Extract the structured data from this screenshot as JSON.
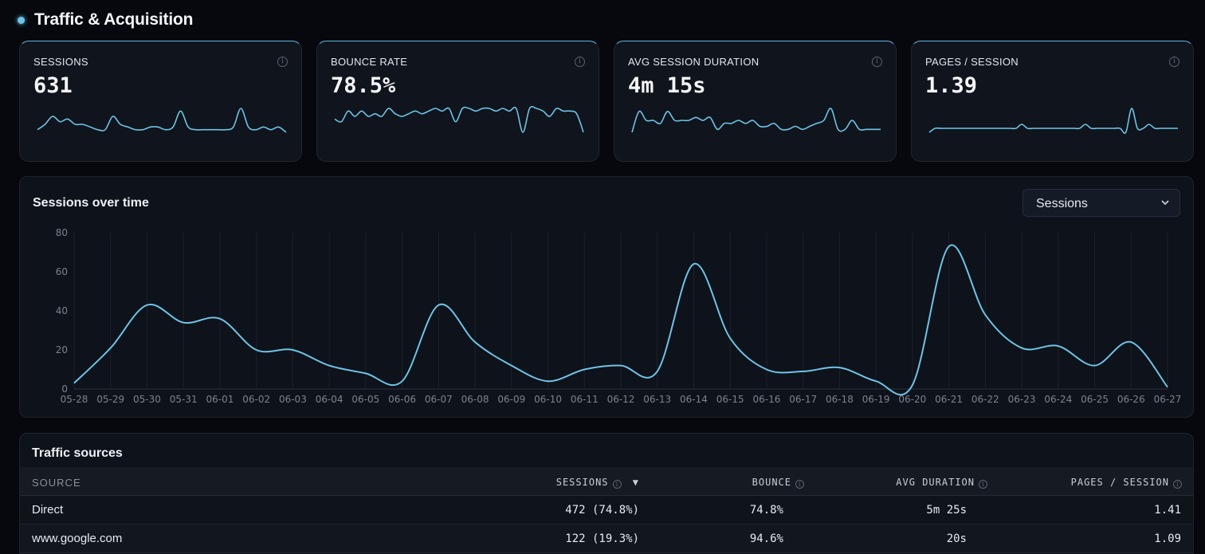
{
  "section": {
    "title": "Traffic & Acquisition"
  },
  "kpis": [
    {
      "label": "SESSIONS",
      "value": "631",
      "spark": [
        3,
        5,
        8,
        6,
        7,
        5,
        5,
        4,
        3,
        3,
        8,
        5,
        4,
        3,
        3,
        4,
        4,
        3,
        4,
        10,
        4,
        3,
        3,
        3,
        3,
        3,
        4,
        11,
        4,
        3,
        4,
        3,
        4,
        2
      ]
    },
    {
      "label": "BOUNCE RATE",
      "value": "78.5%",
      "spark": [
        7,
        6,
        10,
        8,
        10,
        8,
        9,
        8,
        11,
        9,
        8,
        9,
        10,
        9,
        10,
        11,
        10,
        11,
        6,
        11,
        11,
        10,
        11,
        11,
        10,
        11,
        10,
        11,
        2,
        11,
        11,
        10,
        8,
        11,
        10,
        10,
        9,
        2
      ]
    },
    {
      "label": "AVG SESSION DURATION",
      "value": "4m 15s",
      "spark": [
        2,
        9,
        6,
        6,
        5,
        9,
        6,
        6,
        6,
        7,
        6,
        7,
        3,
        5,
        5,
        6,
        5,
        6,
        4,
        4,
        5,
        3,
        3,
        4,
        3,
        4,
        5,
        6,
        10,
        3,
        3,
        6,
        3,
        3,
        3,
        3
      ]
    },
    {
      "label": "PAGES / SESSION",
      "value": "1.39",
      "spark": [
        4,
        5,
        5,
        5,
        5,
        5,
        5,
        5,
        5,
        5,
        5,
        5,
        5,
        5,
        5,
        5,
        6,
        5,
        5,
        5,
        5,
        5,
        5,
        5,
        5,
        5,
        5,
        6,
        5,
        5,
        5,
        5,
        5,
        5,
        4,
        10,
        5,
        5,
        6,
        5,
        5,
        5,
        5,
        5
      ]
    }
  ],
  "chart": {
    "title": "Sessions over time",
    "select_value": "Sessions",
    "colors": {
      "line": "#6ec3e6",
      "grid": "#1c222c",
      "tick": "#7c8390"
    }
  },
  "chart_data": {
    "type": "line",
    "x": [
      "05-28",
      "05-29",
      "05-30",
      "05-31",
      "06-01",
      "06-02",
      "06-03",
      "06-04",
      "06-05",
      "06-06",
      "06-07",
      "06-08",
      "06-09",
      "06-10",
      "06-11",
      "06-12",
      "06-13",
      "06-14",
      "06-15",
      "06-16",
      "06-17",
      "06-18",
      "06-19",
      "06-20",
      "06-21",
      "06-22",
      "06-23",
      "06-24",
      "06-25",
      "06-26",
      "06-27"
    ],
    "series": [
      {
        "values": [
          3,
          21,
          43,
          34,
          36,
          20,
          20,
          12,
          8,
          4,
          43,
          24,
          12,
          4,
          10,
          12,
          9,
          64,
          26,
          10,
          9,
          11,
          4,
          2,
          73,
          38,
          21,
          22,
          12,
          24,
          1
        ]
      }
    ],
    "ylim": [
      0,
      80
    ],
    "yticks": [
      0,
      20,
      40,
      60,
      80
    ],
    "grid": "vertical"
  },
  "table": {
    "title": "Traffic sources",
    "headers": {
      "source": "SOURCE",
      "sessions": "SESSIONS",
      "sort_arrow": "▼",
      "bounce": "BOUNCE",
      "duration": "AVG DURATION",
      "pages": "PAGES / SESSION"
    },
    "rows": [
      {
        "source": "Direct",
        "sessions": "472 (74.8%)",
        "bounce": "74.8%",
        "duration": "5m 25s",
        "pages": "1.41"
      },
      {
        "source": "www.google.com",
        "sessions": "122 (19.3%)",
        "bounce": "94.6%",
        "duration": "20s",
        "pages": "1.09"
      }
    ]
  }
}
